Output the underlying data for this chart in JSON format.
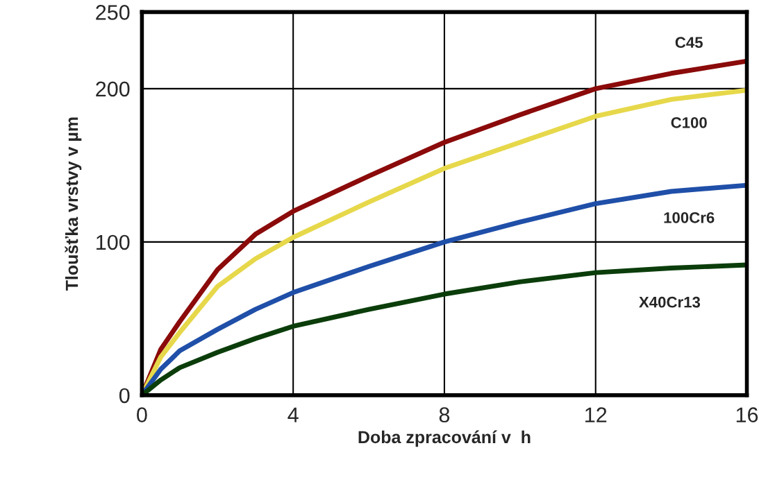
{
  "chart_data": {
    "type": "line",
    "xlabel": "Doba zpracování v  h",
    "ylabel": "Tloušťka vrstvy v µm",
    "x": [
      0,
      0.5,
      1,
      2,
      3,
      4,
      6,
      8,
      10,
      12,
      14,
      16
    ],
    "series": [
      {
        "name": "C45",
        "color": "#8b0a0a",
        "values": [
          0,
          30,
          48,
          82,
          105,
          120,
          143,
          165,
          183,
          200,
          210,
          218
        ]
      },
      {
        "name": "C100",
        "color": "#e6d84a",
        "values": [
          0,
          25,
          41,
          71,
          89,
          103,
          126,
          148,
          165,
          182,
          193,
          199
        ]
      },
      {
        "name": "100Cr6",
        "color": "#1f4fa8",
        "values": [
          0,
          17,
          29,
          43,
          56,
          67,
          84,
          100,
          113,
          125,
          133,
          137
        ]
      },
      {
        "name": "X40Cr13",
        "color": "#0b3d0b",
        "values": [
          0,
          10,
          18,
          28,
          37,
          45,
          56,
          66,
          74,
          80,
          83,
          85
        ]
      }
    ],
    "xlim": [
      0,
      16
    ],
    "xticks": [
      0,
      4,
      8,
      12,
      16
    ],
    "ylim": [
      0,
      250
    ],
    "yticks": [
      0,
      100,
      200,
      250
    ],
    "grid": true,
    "legend": false,
    "line_style": "solid",
    "marker": "none"
  }
}
